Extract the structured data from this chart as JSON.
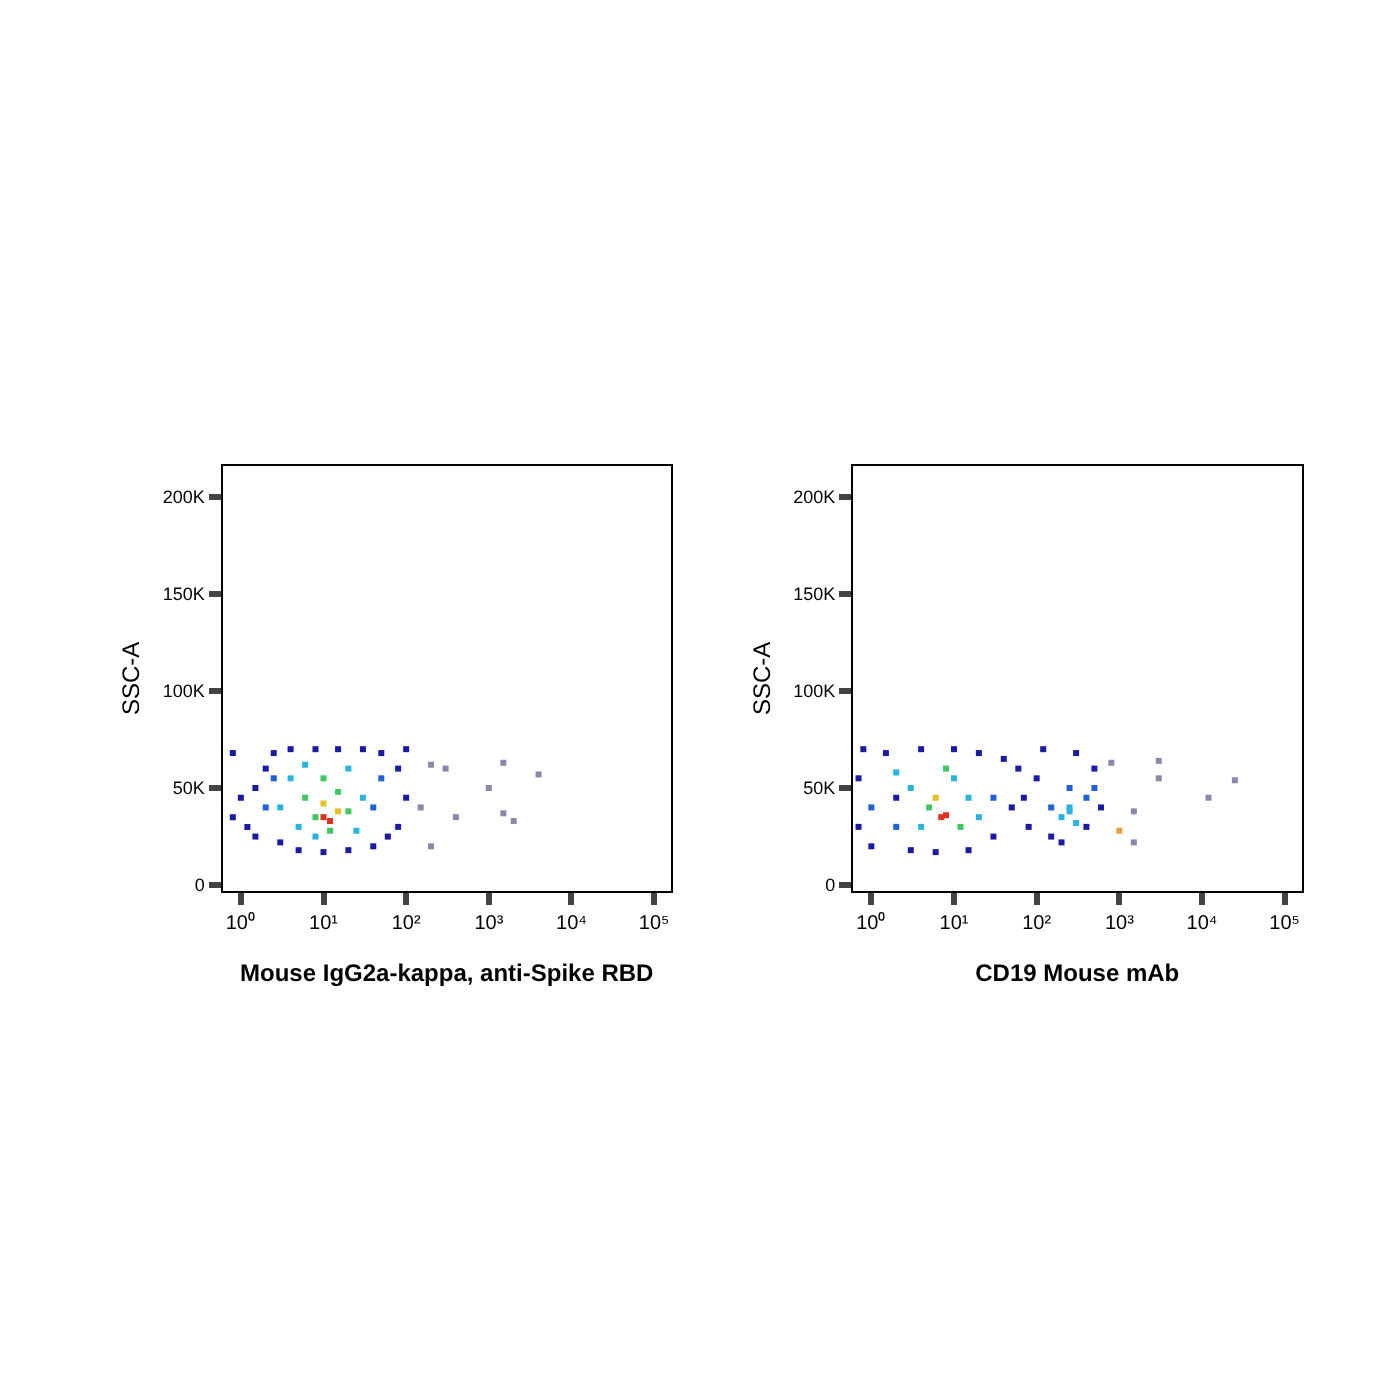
{
  "chart_data": [
    {
      "type": "scatter",
      "xlabel": "Mouse IgG2a-kappa, anti-Spike RBD",
      "ylabel": "SSC-A",
      "log": "x",
      "marker": "square",
      "legend": false,
      "xlim": [
        0.6,
        160000
      ],
      "xticks": [
        {
          "value": 1,
          "label": "10⁰"
        },
        {
          "value": 10,
          "label": "10¹"
        },
        {
          "value": 100,
          "label": "10²"
        },
        {
          "value": 1000,
          "label": "10³"
        },
        {
          "value": 10000,
          "label": "10⁴"
        },
        {
          "value": 100000,
          "label": "10⁵"
        }
      ],
      "ylim": [
        -3000,
        216000
      ],
      "yticks": [
        {
          "value": 0,
          "label": "0"
        },
        {
          "value": 50000,
          "label": "50K"
        },
        {
          "value": 100000,
          "label": "100K"
        },
        {
          "value": 150000,
          "label": "150K"
        },
        {
          "value": 200000,
          "label": "200K"
        }
      ],
      "x": [
        0.8,
        0.8,
        1,
        1.5,
        2,
        2.5,
        3,
        4,
        5,
        8,
        10,
        15,
        20,
        30,
        40,
        50,
        60,
        80,
        100,
        100,
        80,
        1.5,
        1.2,
        2,
        2.5,
        3,
        4,
        5,
        6,
        20,
        30,
        25,
        8,
        40,
        50,
        6,
        10,
        15,
        8,
        20,
        12,
        10,
        15,
        10,
        12,
        200,
        300,
        150,
        400,
        1000,
        1500,
        1500,
        2000,
        4000,
        200
      ],
      "values": [
        68000,
        35000,
        45000,
        25000,
        60000,
        68000,
        22000,
        70000,
        18000,
        70000,
        17000,
        70000,
        18000,
        70000,
        20000,
        68000,
        25000,
        60000,
        45000,
        70000,
        30000,
        50000,
        30000,
        40000,
        55000,
        40000,
        55000,
        30000,
        62000,
        60000,
        45000,
        28000,
        25000,
        40000,
        55000,
        45000,
        55000,
        48000,
        35000,
        38000,
        28000,
        42000,
        38000,
        35000,
        33000,
        62000,
        60000,
        40000,
        35000,
        50000,
        63000,
        37000,
        33000,
        57000,
        20000
      ],
      "colors": [
        "#1a1aa8",
        "#1a1aa8",
        "#1a1aa8",
        "#1a1aa8",
        "#1a1aa8",
        "#1a1aa8",
        "#1a1aa8",
        "#1a1aa8",
        "#1a1aa8",
        "#1a1aa8",
        "#1a1aa8",
        "#1a1aa8",
        "#1a1aa8",
        "#1a1aa8",
        "#1a1aa8",
        "#1a1aa8",
        "#1a1aa8",
        "#1a1aa8",
        "#1a1aa8",
        "#1a1aa8",
        "#1a1aa8",
        "#1a1aa8",
        "#1a1aa8",
        "#2060d8",
        "#2060d8",
        "#28b4e0",
        "#28b4e0",
        "#28b4e0",
        "#28b4e0",
        "#28b4e0",
        "#28b4e0",
        "#28b4e0",
        "#28b4e0",
        "#2060d8",
        "#2060d8",
        "#40c860",
        "#40c860",
        "#40c860",
        "#40c860",
        "#40c860",
        "#40c860",
        "#e8c020",
        "#e8c020",
        "#e03020",
        "#e03020",
        "#8888aa",
        "#8888aa",
        "#8888aa",
        "#8888aa",
        "#8888aa",
        "#8888aa",
        "#8888aa",
        "#8888aa",
        "#8888aa",
        "#8888aa"
      ]
    },
    {
      "type": "scatter",
      "xlabel": "CD19 Mouse mAb",
      "ylabel": "SSC-A",
      "log": "x",
      "marker": "square",
      "legend": false,
      "xlim": [
        0.6,
        160000
      ],
      "xticks": [
        {
          "value": 1,
          "label": "10⁰"
        },
        {
          "value": 10,
          "label": "10¹"
        },
        {
          "value": 100,
          "label": "10²"
        },
        {
          "value": 1000,
          "label": "10³"
        },
        {
          "value": 10000,
          "label": "10⁴"
        },
        {
          "value": 100000,
          "label": "10⁵"
        }
      ],
      "ylim": [
        -3000,
        216000
      ],
      "yticks": [
        {
          "value": 0,
          "label": "0"
        },
        {
          "value": 50000,
          "label": "50K"
        },
        {
          "value": 100000,
          "label": "100K"
        },
        {
          "value": 150000,
          "label": "150K"
        },
        {
          "value": 200000,
          "label": "200K"
        }
      ],
      "x": [
        0.7,
        0.7,
        0.8,
        1,
        1.5,
        2,
        3,
        4,
        6,
        10,
        15,
        20,
        30,
        40,
        50,
        30,
        1,
        2,
        2,
        3,
        4,
        10,
        15,
        20,
        8,
        5,
        12,
        6,
        8,
        7,
        60,
        80,
        70,
        100,
        120,
        150,
        200,
        300,
        400,
        500,
        600,
        500,
        150,
        250,
        400,
        200,
        300,
        250,
        250,
        800,
        1000,
        1500,
        1500,
        3000,
        3000,
        12000,
        25000
      ],
      "values": [
        55000,
        30000,
        70000,
        20000,
        68000,
        45000,
        18000,
        70000,
        17000,
        70000,
        18000,
        68000,
        25000,
        65000,
        40000,
        45000,
        40000,
        30000,
        58000,
        50000,
        30000,
        55000,
        45000,
        35000,
        60000,
        40000,
        30000,
        45000,
        36000,
        35000,
        60000,
        30000,
        45000,
        55000,
        70000,
        25000,
        22000,
        68000,
        30000,
        60000,
        40000,
        50000,
        40000,
        50000,
        45000,
        35000,
        32000,
        38000,
        40000,
        63000,
        28000,
        38000,
        22000,
        55000,
        64000,
        45000,
        54000
      ],
      "colors": [
        "#1a1aa8",
        "#1a1aa8",
        "#1a1aa8",
        "#1a1aa8",
        "#1a1aa8",
        "#1a1aa8",
        "#1a1aa8",
        "#1a1aa8",
        "#1a1aa8",
        "#1a1aa8",
        "#1a1aa8",
        "#1a1aa8",
        "#1a1aa8",
        "#1a1aa8",
        "#1a1aa8",
        "#2060d8",
        "#2060d8",
        "#2060d8",
        "#28b4e0",
        "#28b4e0",
        "#28b4e0",
        "#28b4e0",
        "#28b4e0",
        "#28b4e0",
        "#40c860",
        "#40c860",
        "#40c860",
        "#e8c020",
        "#e03020",
        "#e03020",
        "#1a1aa8",
        "#1a1aa8",
        "#1a1aa8",
        "#1a1aa8",
        "#1a1aa8",
        "#1a1aa8",
        "#1a1aa8",
        "#1a1aa8",
        "#1a1aa8",
        "#1a1aa8",
        "#1a1aa8",
        "#2060d8",
        "#2060d8",
        "#2060d8",
        "#2060d8",
        "#28b4e0",
        "#28b4e0",
        "#28b4e0",
        "#28b4e0",
        "#8888aa",
        "#e8a040",
        "#8888aa",
        "#8888aa",
        "#8888aa",
        "#8888aa",
        "#8888aa",
        "#8888aa"
      ]
    }
  ]
}
